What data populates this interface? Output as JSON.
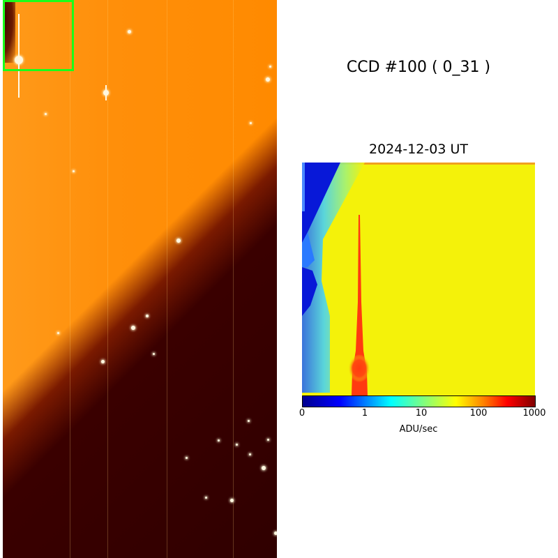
{
  "title": "CCD #100 ( 0_31 )",
  "date": "2024-12-03 UT",
  "colorbar": {
    "label": "ADU/sec",
    "ticks": [
      "0",
      "1",
      "10",
      "100",
      "1000"
    ],
    "colors": [
      "#00008f",
      "#0000ff",
      "#00ffff",
      "#ffff00",
      "#ff0000",
      "#800000"
    ]
  },
  "highlight_color": "#1aff1a"
}
